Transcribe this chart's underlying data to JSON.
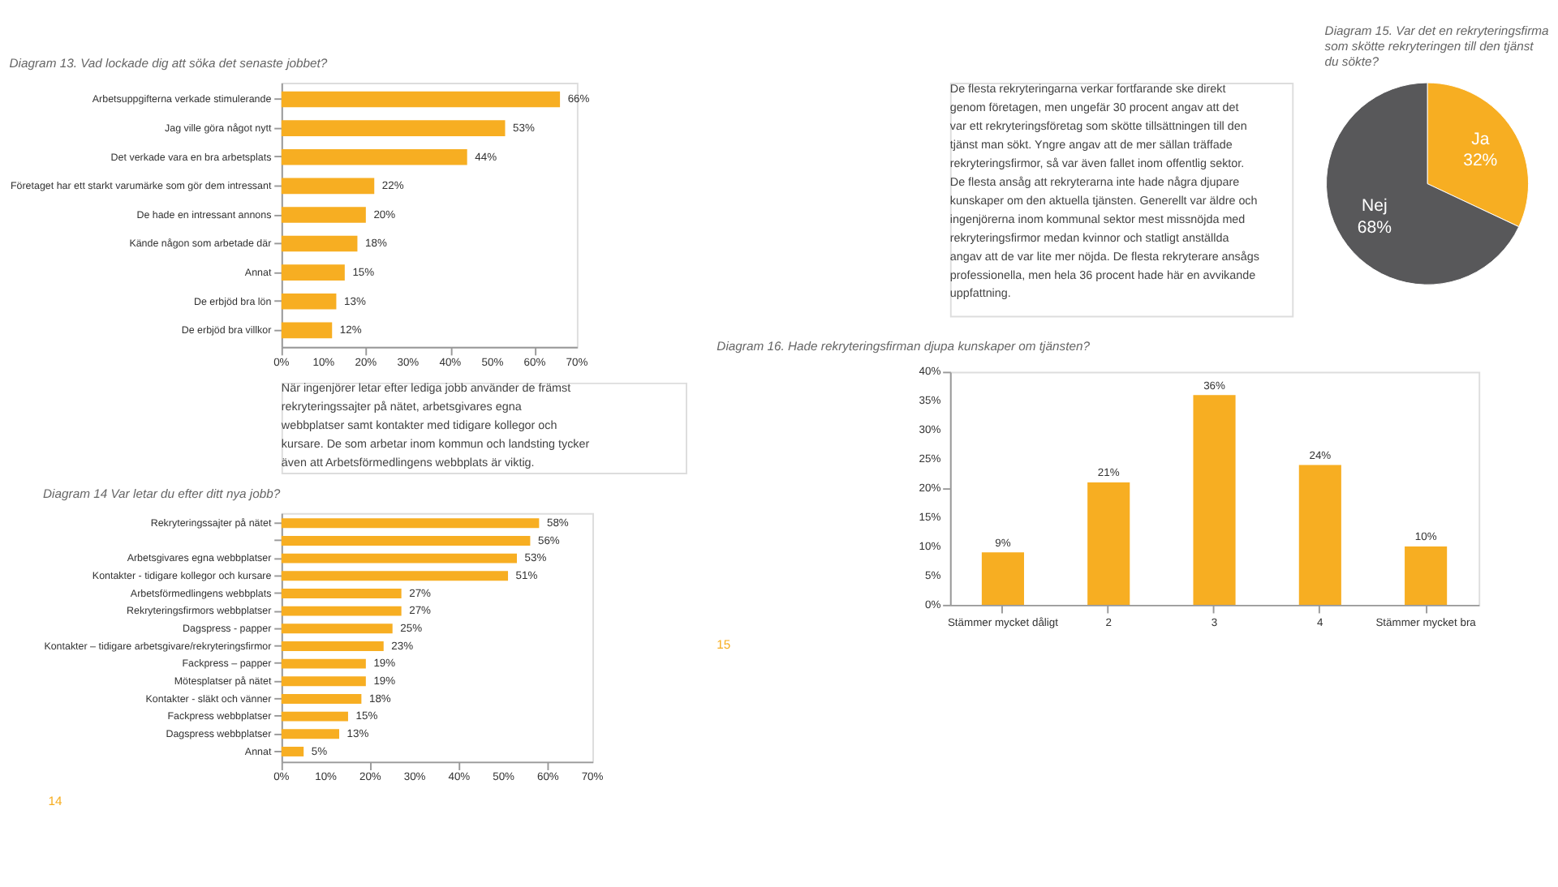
{
  "chart_data": [
    {
      "type": "bar",
      "orientation": "horizontal",
      "title": "Diagram 13. Vad lockade dig att söka det senaste jobbet?",
      "categories": [
        "Arbetsuppgifterna verkade stimulerande",
        "Jag ville göra något nytt",
        "Det verkade vara en bra arbetsplats",
        "Företaget har ett starkt varumärke som gör dem intressant",
        "De hade en intressant annons",
        "Kände någon som arbetade där",
        "Annat",
        "De erbjöd bra lön",
        "De erbjöd bra villkor"
      ],
      "values": [
        66,
        53,
        44,
        22,
        20,
        18,
        15,
        13,
        12
      ],
      "color": "#f7ae22",
      "value_labels": [
        "66%",
        "53%",
        "44%",
        "22%",
        "20%",
        "18%",
        "15%",
        "13%",
        "12%"
      ],
      "xlim": [
        0,
        70
      ],
      "xticks": [
        {
          "value": 0,
          "label": "0%"
        },
        {
          "value": 10,
          "label": "10%"
        },
        {
          "value": 20,
          "label": "20%"
        },
        {
          "value": 30,
          "label": "30%"
        },
        {
          "value": 40,
          "label": "40%"
        },
        {
          "value": 50,
          "label": "50%"
        },
        {
          "value": 60,
          "label": "60%"
        },
        {
          "value": 70,
          "label": "70%"
        }
      ]
    },
    {
      "type": "other",
      "annotations": [
        "De flesta rekryteringarna verkar fortfarande ske direkt",
        "genom företagen, men ungefär 30 procent angav att det",
        "var ett rekryteringsföretag som skötte tillsättningen till den",
        "tjänst man sökt.  Yngre angav att de mer sällan träffade",
        "rekryteringsfirmor, så var även fallet inom offentlig sektor.",
        "De flesta ansåg att rekryterarna inte hade några djupare",
        "kunskaper om den aktuella tjänsten. Generellt var äldre och",
        "ingenjörerna inom kommunal sektor mest missnöjda med",
        "rekryteringsfirmor medan kvinnor och statligt anställda",
        "angav att de var lite mer nöjda. De flesta rekryterare ansågs",
        "professionella, men hela 36 procent hade här en avvikande",
        "uppfattning."
      ]
    },
    {
      "type": "pie",
      "title": "Diagram 15. Var det en rekryteringsfirma som skötte rekryteringen till den tjänst du sökte?",
      "categories": [
        "Ja",
        "Nej"
      ],
      "values": [
        32,
        68
      ],
      "colors": [
        "#f7ae22",
        "#58585a"
      ],
      "value_labels": [
        "32%",
        "68%"
      ]
    },
    {
      "type": "other",
      "annotations": [
        "När ingenjörer letar efter lediga jobb använder de främst",
        "rekryteringssajter på nätet, arbetsgivares egna",
        "webbplatser samt kontakter med tidigare kollegor och",
        "kursare. De som arbetar inom kommun och landsting tycker",
        "även att Arbetsförmedlingens webbplats är viktig."
      ]
    },
    {
      "type": "bar",
      "orientation": "horizontal",
      "title": "Diagram 14 Var letar du efter ditt nya jobb?",
      "categories": [
        "Rekryteringssajter på nätet",
        null,
        "Arbetsgivares egna webbplatser",
        "Kontakter - tidigare kollegor och kursare",
        "Arbetsförmedlingens webbplats",
        "Rekryteringsfirmors webbplatser",
        "Dagspress - papper",
        "Kontakter – tidigare arbetsgivare/rekryteringsfirmor",
        "Fackpress – papper",
        "Mötesplatser på nätet",
        "Kontakter - släkt och vänner",
        "Fackpress webbplatser",
        "Dagspress webbplatser",
        "Annat"
      ],
      "values": [
        58,
        56,
        53,
        51,
        27,
        27,
        25,
        23,
        19,
        19,
        18,
        15,
        13,
        5
      ],
      "color": "#f7ae22",
      "value_labels": [
        "58%",
        "56%",
        "53%",
        "51%",
        "27%",
        "27%",
        "25%",
        "23%",
        "19%",
        "19%",
        "18%",
        "15%",
        "13%",
        "5%"
      ],
      "xlim": [
        0,
        70
      ],
      "xticks": [
        {
          "value": 0,
          "label": "0%"
        },
        {
          "value": 10,
          "label": "10%"
        },
        {
          "value": 20,
          "label": "20%"
        },
        {
          "value": 30,
          "label": "30%"
        },
        {
          "value": 40,
          "label": "40%"
        },
        {
          "value": 50,
          "label": "50%"
        },
        {
          "value": 60,
          "label": "60%"
        },
        {
          "value": 70,
          "label": "70%"
        }
      ],
      "annotations": [
        "14"
      ]
    },
    {
      "type": "bar",
      "title": "Diagram 16. Hade rekryteringsfirman djupa kunskaper om tjänsten?",
      "categories": [
        "Stämmer mycket dåligt",
        "2",
        "3",
        "4",
        "Stämmer mycket bra"
      ],
      "values": [
        9,
        21,
        36,
        24,
        10
      ],
      "color": "#f7ae22",
      "value_labels": [
        "9%",
        "21%",
        "36%",
        "24%",
        "10%"
      ],
      "ylim": [
        0,
        40
      ],
      "yticks": [
        {
          "value": 0,
          "label": "0%"
        },
        {
          "value": 5,
          "label": "5%"
        },
        {
          "value": 10,
          "label": "10%"
        },
        {
          "value": 15,
          "label": "15%"
        },
        {
          "value": 20,
          "label": "20%"
        },
        {
          "value": 25,
          "label": "25%"
        },
        {
          "value": 30,
          "label": "30%"
        },
        {
          "value": 35,
          "label": "35%"
        },
        {
          "value": 40,
          "label": "40%"
        }
      ],
      "annotations": [
        "15"
      ]
    }
  ]
}
